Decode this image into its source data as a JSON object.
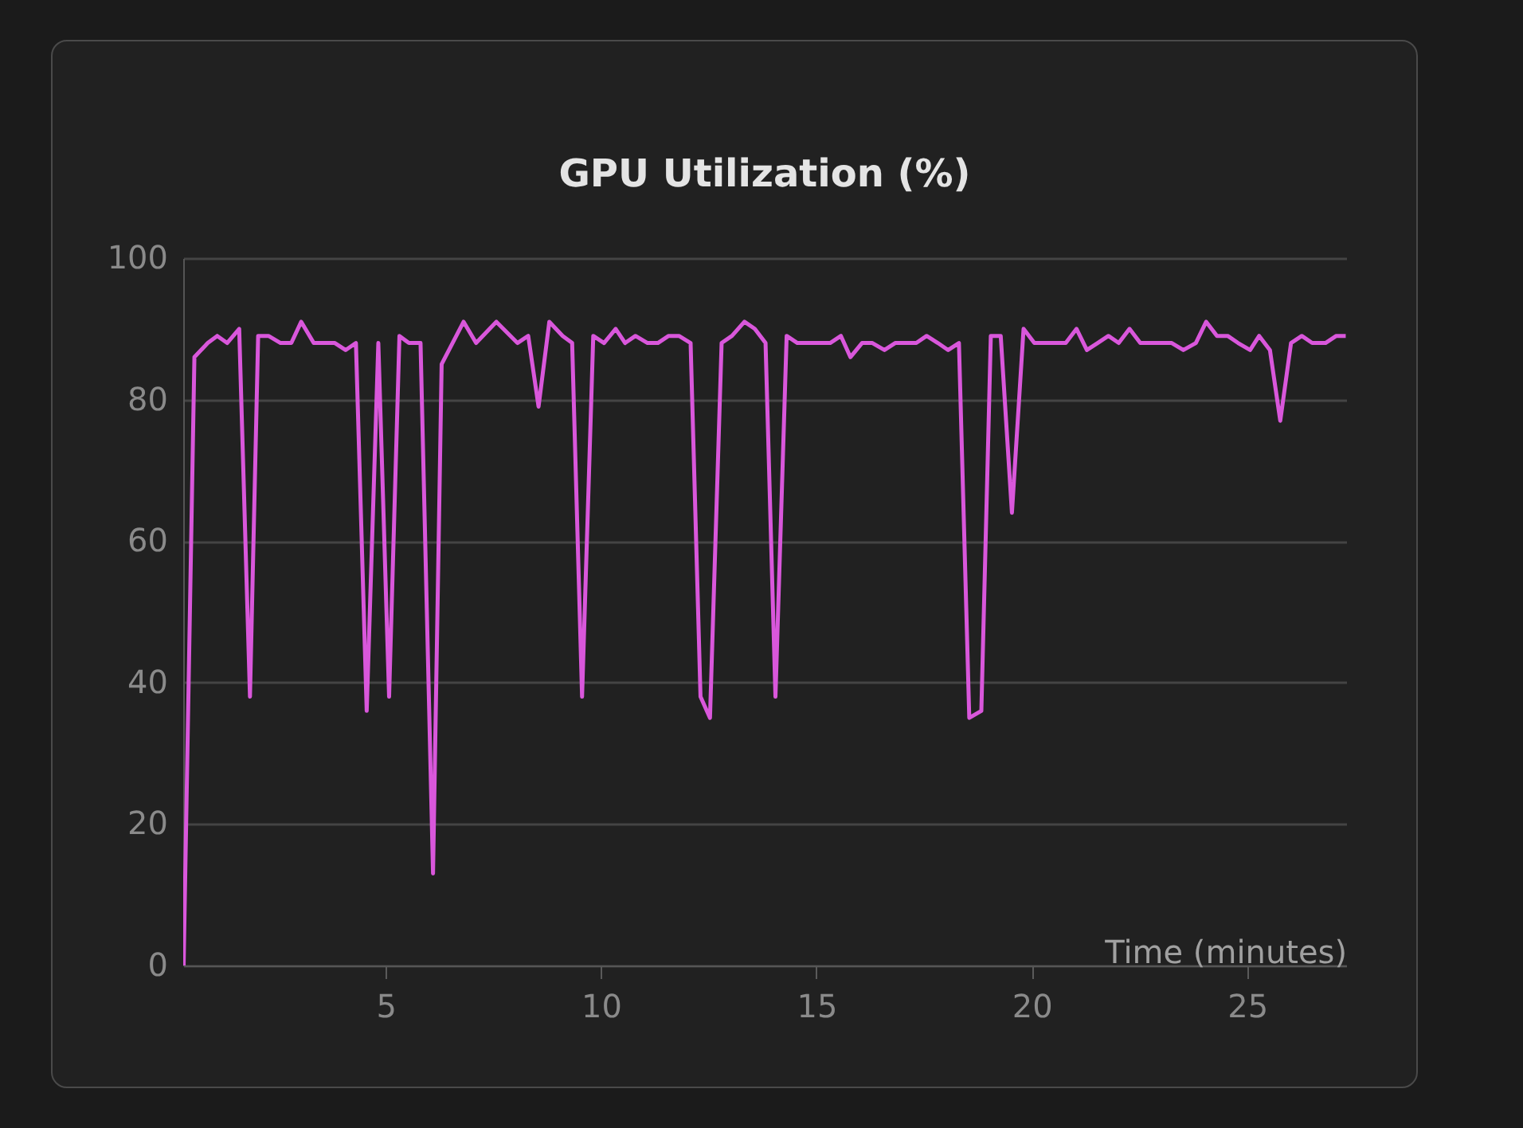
{
  "chart_data": {
    "type": "line",
    "title": "GPU Utilization (%)",
    "xlabel": "Time (minutes)",
    "x": [
      0.31,
      0.56,
      0.87,
      1.09,
      1.32,
      1.6,
      1.85,
      2.04,
      2.28,
      2.56,
      2.81,
      3.04,
      3.33,
      3.82,
      4.07,
      4.31,
      4.56,
      4.83,
      5.08,
      5.32,
      5.54,
      5.81,
      6.1,
      6.3,
      6.81,
      7.1,
      7.57,
      8.06,
      8.31,
      8.55,
      8.8,
      9.11,
      9.33,
      9.56,
      9.82,
      10.07,
      10.34,
      10.56,
      10.8,
      11.08,
      11.32,
      11.57,
      11.81,
      12.08,
      12.31,
      12.53,
      12.8,
      13.04,
      13.33,
      13.57,
      13.82,
      14.05,
      14.31,
      14.56,
      15.32,
      15.57,
      15.79,
      16.06,
      16.3,
      16.58,
      16.83,
      17.32,
      17.56,
      17.82,
      18.06,
      18.31,
      18.55,
      18.83,
      19.05,
      19.28,
      19.54,
      19.81,
      20.06,
      20.79,
      21.04,
      21.28,
      21.53,
      21.78,
      22.02,
      22.27,
      22.52,
      23.25,
      23.52,
      23.81,
      24.05,
      24.3,
      24.55,
      24.79,
      25.07,
      25.28,
      25.53,
      25.77,
      26.02,
      26.27,
      26.51,
      26.82,
      27.07,
      27.29
    ],
    "series": [
      {
        "color": "#d957db",
        "values": [
          0,
          86,
          88,
          89,
          88,
          90,
          38,
          89,
          89,
          88,
          88,
          91,
          88,
          88,
          87,
          88,
          36,
          88,
          38,
          89,
          88,
          88,
          13,
          85,
          91,
          88,
          91,
          88,
          89,
          79,
          91,
          89,
          88,
          38,
          89,
          88,
          90,
          88,
          89,
          88,
          88,
          89,
          89,
          88,
          38,
          35,
          88,
          89,
          91,
          90,
          88,
          38,
          89,
          88,
          88,
          89,
          86,
          88,
          88,
          87,
          88,
          88,
          89,
          88,
          87,
          88,
          35,
          36,
          89,
          89,
          64,
          90,
          88,
          88,
          90,
          87,
          88,
          89,
          88,
          90,
          88,
          88,
          87,
          88,
          91,
          89,
          89,
          88,
          87,
          89,
          87,
          77,
          88,
          89,
          88,
          88,
          89,
          89
        ]
      }
    ],
    "xlim": [
      0.3,
      27.3
    ],
    "xticks": [
      5,
      10,
      15,
      20,
      25
    ],
    "ylim": [
      0,
      100
    ],
    "yticks": [
      0,
      20,
      40,
      60,
      80,
      100
    ],
    "grid": "y",
    "marker": "none",
    "line_style": "solid"
  }
}
